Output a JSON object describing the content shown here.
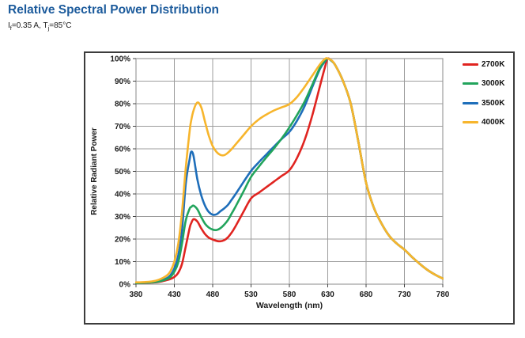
{
  "page": {
    "title": "Relative Spectral Power Distribution",
    "subtitle": {
      "pre": "I",
      "sub1": "f",
      "mid": "=0.35 A, T",
      "sub2": "j",
      "post": "=85°C"
    }
  },
  "colors": {
    "title": "#1c5b9c",
    "grid": "#9c9c9c",
    "frame": "#3c3c3c",
    "tick": "#444444",
    "text": "#1a1a1a"
  },
  "chart_data": {
    "type": "line",
    "title": "Relative Spectral Power Distribution",
    "xlabel": "Wavelength (nm)",
    "ylabel": "Relative Radiant Power",
    "xlim": [
      380,
      780
    ],
    "ylim": [
      0,
      100
    ],
    "xticks": [
      380,
      430,
      480,
      530,
      580,
      630,
      680,
      730,
      780
    ],
    "yticks": [
      0,
      10,
      20,
      30,
      40,
      50,
      60,
      70,
      80,
      90,
      100
    ],
    "ytick_suffix": "%",
    "grid": true,
    "legend_position": "right-inside",
    "x": [
      380,
      390,
      400,
      410,
      420,
      425,
      430,
      435,
      440,
      445,
      450,
      452,
      455,
      460,
      465,
      470,
      475,
      480,
      485,
      490,
      495,
      500,
      505,
      510,
      520,
      530,
      540,
      550,
      560,
      570,
      580,
      590,
      600,
      610,
      620,
      627,
      630,
      635,
      640,
      650,
      660,
      670,
      680,
      690,
      700,
      710,
      720,
      730,
      740,
      750,
      760,
      770,
      780
    ],
    "series": [
      {
        "name": "2700K",
        "color": "#e02420",
        "z": 1,
        "values": [
          0.5,
          0.5,
          0.7,
          1.0,
          1.8,
          2.3,
          3.2,
          5,
          9,
          17,
          25,
          27,
          28.8,
          27.8,
          24.8,
          22.2,
          20.6,
          19.8,
          19.2,
          19,
          19.5,
          20.8,
          23,
          25.8,
          32,
          38,
          40.5,
          43,
          45.5,
          48,
          50.5,
          56,
          64,
          75,
          88,
          97,
          100,
          99,
          97,
          90,
          80,
          63,
          45,
          34,
          27,
          21.5,
          18,
          15.3,
          12,
          9,
          6.3,
          4.2,
          2.5
        ]
      },
      {
        "name": "3000K",
        "color": "#22a45c",
        "z": 3,
        "values": [
          0.5,
          0.6,
          0.8,
          1.2,
          2.2,
          3.2,
          5.5,
          9.5,
          18,
          28.5,
          33.5,
          34.2,
          34.8,
          33.2,
          29.8,
          26.8,
          25.1,
          24.2,
          24.0,
          24.8,
          26.4,
          28.5,
          31.5,
          34.5,
          41,
          47.5,
          52,
          56.2,
          60.2,
          64.6,
          69.5,
          75,
          81,
          88.5,
          96,
          99.3,
          100,
          99,
          97,
          90,
          80,
          63,
          45,
          34,
          27,
          21.5,
          18,
          15.3,
          12,
          9,
          6.3,
          4.2,
          2.5
        ]
      },
      {
        "name": "3500K",
        "color": "#1e6eba",
        "z": 2,
        "values": [
          0.5,
          0.6,
          0.9,
          1.4,
          2.6,
          4.0,
          7,
          12.5,
          24,
          45,
          55.5,
          58.7,
          56.8,
          46.5,
          39.5,
          34.8,
          32,
          30.8,
          31,
          32.3,
          33.6,
          35.2,
          37.6,
          40,
          45.2,
          50.2,
          54,
          57.5,
          61,
          64.4,
          67.5,
          72.5,
          79,
          87.5,
          95.5,
          99,
          100,
          99,
          97,
          90,
          80,
          63,
          45,
          34,
          27,
          21.5,
          18,
          15.3,
          12,
          9,
          6.3,
          4.2,
          2.5
        ]
      },
      {
        "name": "4000K",
        "color": "#f7b52c",
        "z": 4,
        "values": [
          0.8,
          0.9,
          1.2,
          2.0,
          3.8,
          5.8,
          10,
          17.5,
          32,
          52,
          68,
          72.5,
          77,
          80.5,
          78.5,
          72,
          65.8,
          61.2,
          58.6,
          57.3,
          57.2,
          58.3,
          60,
          62,
          66,
          70,
          73,
          75.2,
          77,
          78.4,
          79.8,
          83,
          87.5,
          92.5,
          97.5,
          100,
          100,
          99.2,
          97,
          90,
          80,
          63,
          45,
          34,
          27,
          21.5,
          18,
          15.3,
          12,
          9,
          6.3,
          4.2,
          2.5
        ]
      }
    ]
  }
}
